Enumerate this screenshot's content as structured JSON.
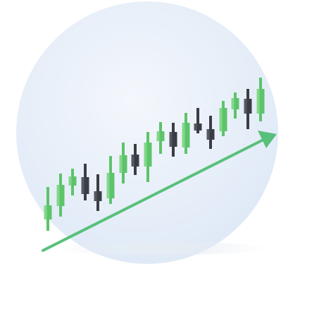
{
  "illustration": {
    "icon": "candlestick-uptrend-illustration",
    "colors": {
      "bullish": "#5cc46a",
      "bullish_highlight": "#8edc92",
      "bearish": "#3b3d45",
      "bearish_highlight": "#5d6069",
      "arrow": "#58c07a",
      "circle_light": "#f4f7fc",
      "circle_dark": "#dde8f6"
    },
    "trend": "up",
    "candles": [
      {
        "dir": "up"
      },
      {
        "dir": "up"
      },
      {
        "dir": "up"
      },
      {
        "dir": "down"
      },
      {
        "dir": "down"
      },
      {
        "dir": "up"
      },
      {
        "dir": "up"
      },
      {
        "dir": "down"
      },
      {
        "dir": "up"
      },
      {
        "dir": "up"
      },
      {
        "dir": "down"
      },
      {
        "dir": "up"
      },
      {
        "dir": "down"
      },
      {
        "dir": "down"
      },
      {
        "dir": "up"
      },
      {
        "dir": "up"
      },
      {
        "dir": "down"
      },
      {
        "dir": "up"
      }
    ]
  }
}
